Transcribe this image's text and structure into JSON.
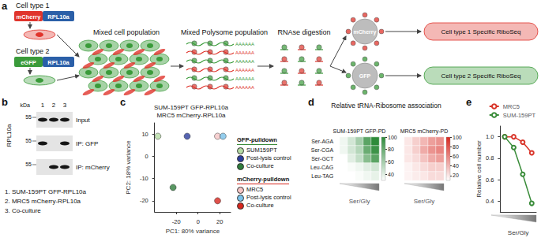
{
  "panel_a": {
    "label": "a",
    "cell_types": [
      {
        "label": "Cell type 1",
        "tag": "mCherry",
        "protein": "RPL10a",
        "color": "#e0342c"
      },
      {
        "label": "Cell type 2",
        "tag": "eGFP",
        "protein": "RPL10a",
        "color": "#3a9b3a"
      }
    ],
    "steps": [
      "Mixed cell population",
      "Mixed Polysome population",
      "RNAse digestion"
    ],
    "poly_a": "AAAAAA",
    "pulldowns": [
      "mCherry",
      "GFP"
    ],
    "outputs": [
      "Cell type 1 Specific RiboSeq",
      "Cell type 2 Specific RiboSeq"
    ]
  },
  "panel_b": {
    "label": "b",
    "marker_unit": "kDa",
    "marker": "55",
    "lanes": [
      "1",
      "2",
      "3"
    ],
    "protein": "RPL10a",
    "rows": [
      "Input",
      "IP: GFP",
      "IP: mCherry"
    ],
    "bands": [
      [
        true,
        true,
        true
      ],
      [
        true,
        false,
        true
      ],
      [
        false,
        true,
        true
      ]
    ],
    "key": [
      "1. SUM-159PT GFP-RPL10a",
      "2. MRC5 mCherry-RPL10a",
      "3. Co-culture"
    ]
  },
  "chart_data": [
    {
      "panel_label": "c",
      "type": "scatter",
      "title": "SUM-159PT GFP-RPL10a",
      "subtitle": "MRC5 mCherry-RPL10a",
      "x_label": "PC1: 80% variance",
      "y_label": "PC2: 18% variance",
      "xlim": [
        -40,
        30
      ],
      "xticks": [
        -20,
        0,
        20
      ],
      "ylim": [
        -25,
        15
      ],
      "yticks": [
        -20,
        -10,
        0,
        10
      ],
      "marker": "circle",
      "groups": [
        {
          "name": "GFP-pulldown",
          "color": "#3a8c3a"
        },
        {
          "name": "mCherry-pulldown",
          "color": "#d7261e"
        }
      ],
      "series": [
        {
          "name": "SUM159PT",
          "group": "GFP-pulldown",
          "color": "#b5dba5",
          "values": [
            [
              -37,
              9
            ]
          ]
        },
        {
          "name": "Post-lysis control",
          "group": "GFP-pulldown",
          "color": "#2c3d9e",
          "values": [
            [
              -10,
              9
            ]
          ]
        },
        {
          "name": "Co-culture",
          "group": "GFP-pulldown",
          "color": "#2f7d3c",
          "values": [
            [
              -23,
              -14
            ]
          ]
        },
        {
          "name": "MRC5",
          "group": "mCherry-pulldown",
          "color": "#f5c6c6",
          "values": [
            [
              18,
              9
            ]
          ]
        },
        {
          "name": "Post-lysis control",
          "group": "mCherry-pulldown",
          "color": "#79c2ea",
          "values": [
            [
              23,
              9
            ]
          ]
        },
        {
          "name": "Co-culture",
          "group": "mCherry-pulldown",
          "color": "#d7261e",
          "values": [
            [
              18,
              -20
            ]
          ]
        }
      ]
    },
    {
      "panel_label": "d",
      "type": "heatmap",
      "title": "Relative tRNA-Ribosome association",
      "rows": [
        "Ser-AGA",
        "Ser-CGA",
        "Ser-GCT",
        "Leu-CAG",
        "Leu-TAG"
      ],
      "columns": [
        null,
        null,
        null,
        null,
        null
      ],
      "x_label": "Ser/Gly",
      "series": [
        {
          "name": "SUM-159PT GFP-PD",
          "colors": [
            "#ffffff",
            "#2e8b3a"
          ],
          "color_range": [
            30,
            100
          ],
          "color_ticks": [
            40,
            60,
            80,
            100
          ],
          "values": [
            [
              35,
              45,
              60,
              85,
              100
            ],
            [
              35,
              45,
              55,
              80,
              95
            ],
            [
              30,
              40,
              50,
              70,
              85
            ],
            [
              30,
              32,
              35,
              40,
              45
            ],
            [
              30,
              30,
              32,
              35,
              38
            ]
          ]
        },
        {
          "name": "MRC5 mCherry-PD",
          "colors": [
            "#ffffff",
            "#d7261e"
          ],
          "color_range": [
            10,
            100
          ],
          "color_ticks": [
            20,
            40,
            60,
            80,
            100
          ],
          "values": [
            [
              20,
              30,
              40,
              50,
              55
            ],
            [
              20,
              30,
              45,
              55,
              60
            ],
            [
              20,
              25,
              35,
              45,
              50
            ],
            [
              15,
              20,
              25,
              30,
              30
            ],
            [
              15,
              18,
              20,
              25,
              25
            ]
          ]
        }
      ]
    },
    {
      "panel_label": "e",
      "type": "line",
      "categories": [
        null,
        null,
        null,
        null
      ],
      "x_label": "Ser/Gly",
      "y_label": "Relative cell number",
      "ylim": [
        0.3,
        1.1
      ],
      "yticks": [
        0.4,
        0.6,
        0.8,
        {
          "value": 1,
          "label": "1.0"
        }
      ],
      "legend": "top-right",
      "marker": "open_circle",
      "series": [
        {
          "name": "MRC5",
          "color": "#d9352a",
          "values": [
            1,
            1,
            0.95,
            0.85
          ]
        },
        {
          "name": "SUM-159PT",
          "color": "#3a8c3a",
          "values": [
            1,
            0.9,
            0.65,
            0.38
          ]
        }
      ]
    }
  ]
}
